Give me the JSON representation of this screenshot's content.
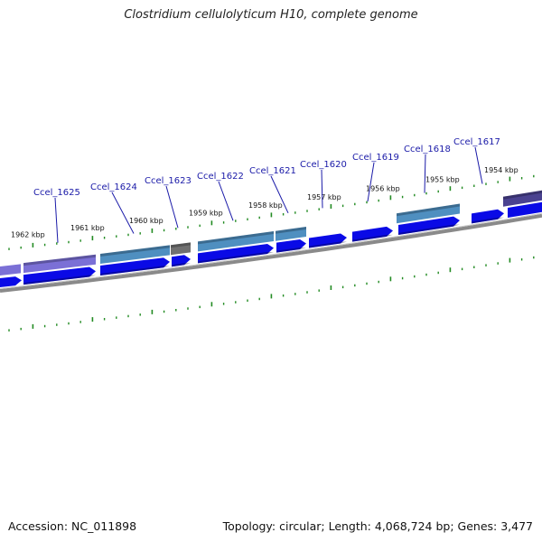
{
  "title": "Clostridium cellulolyticum H10, complete genome",
  "footer": {
    "accession": "Accession: NC_011898",
    "summary": "Topology: circular; Length: 4,068,724 bp; Genes: 3,477"
  },
  "colors": {
    "backbone": "#8a8a8a",
    "tick": "#228b22",
    "gene_label": "#1a1aa8",
    "orf": "#0a0ae6",
    "cog_purple": "#7b70d6",
    "cog_steel": "#4f8fc0",
    "cog_gray": "#707070",
    "cog_dark": "#4a4290"
  },
  "ruler": {
    "labels": [
      "1962 kbp",
      "1961 kbp",
      "1960 kbp",
      "1959 kbp",
      "1958 kbp",
      "1957 kbp",
      "1956 kbp",
      "1955 kbp",
      "1954 kbp"
    ]
  },
  "genes": [
    {
      "name": "Ccel_1625",
      "cog": "purple"
    },
    {
      "name": "Ccel_1624",
      "cog": "steel"
    },
    {
      "name": "Ccel_1623",
      "cog": "gray"
    },
    {
      "name": "Ccel_1622",
      "cog": "steel"
    },
    {
      "name": "Ccel_1621",
      "cog": "steel"
    },
    {
      "name": "Ccel_1620",
      "cog": "none"
    },
    {
      "name": "Ccel_1619",
      "cog": "none"
    },
    {
      "name": "Ccel_1618",
      "cog": "steel"
    },
    {
      "name": "Ccel_1617",
      "cog": "dark"
    }
  ]
}
